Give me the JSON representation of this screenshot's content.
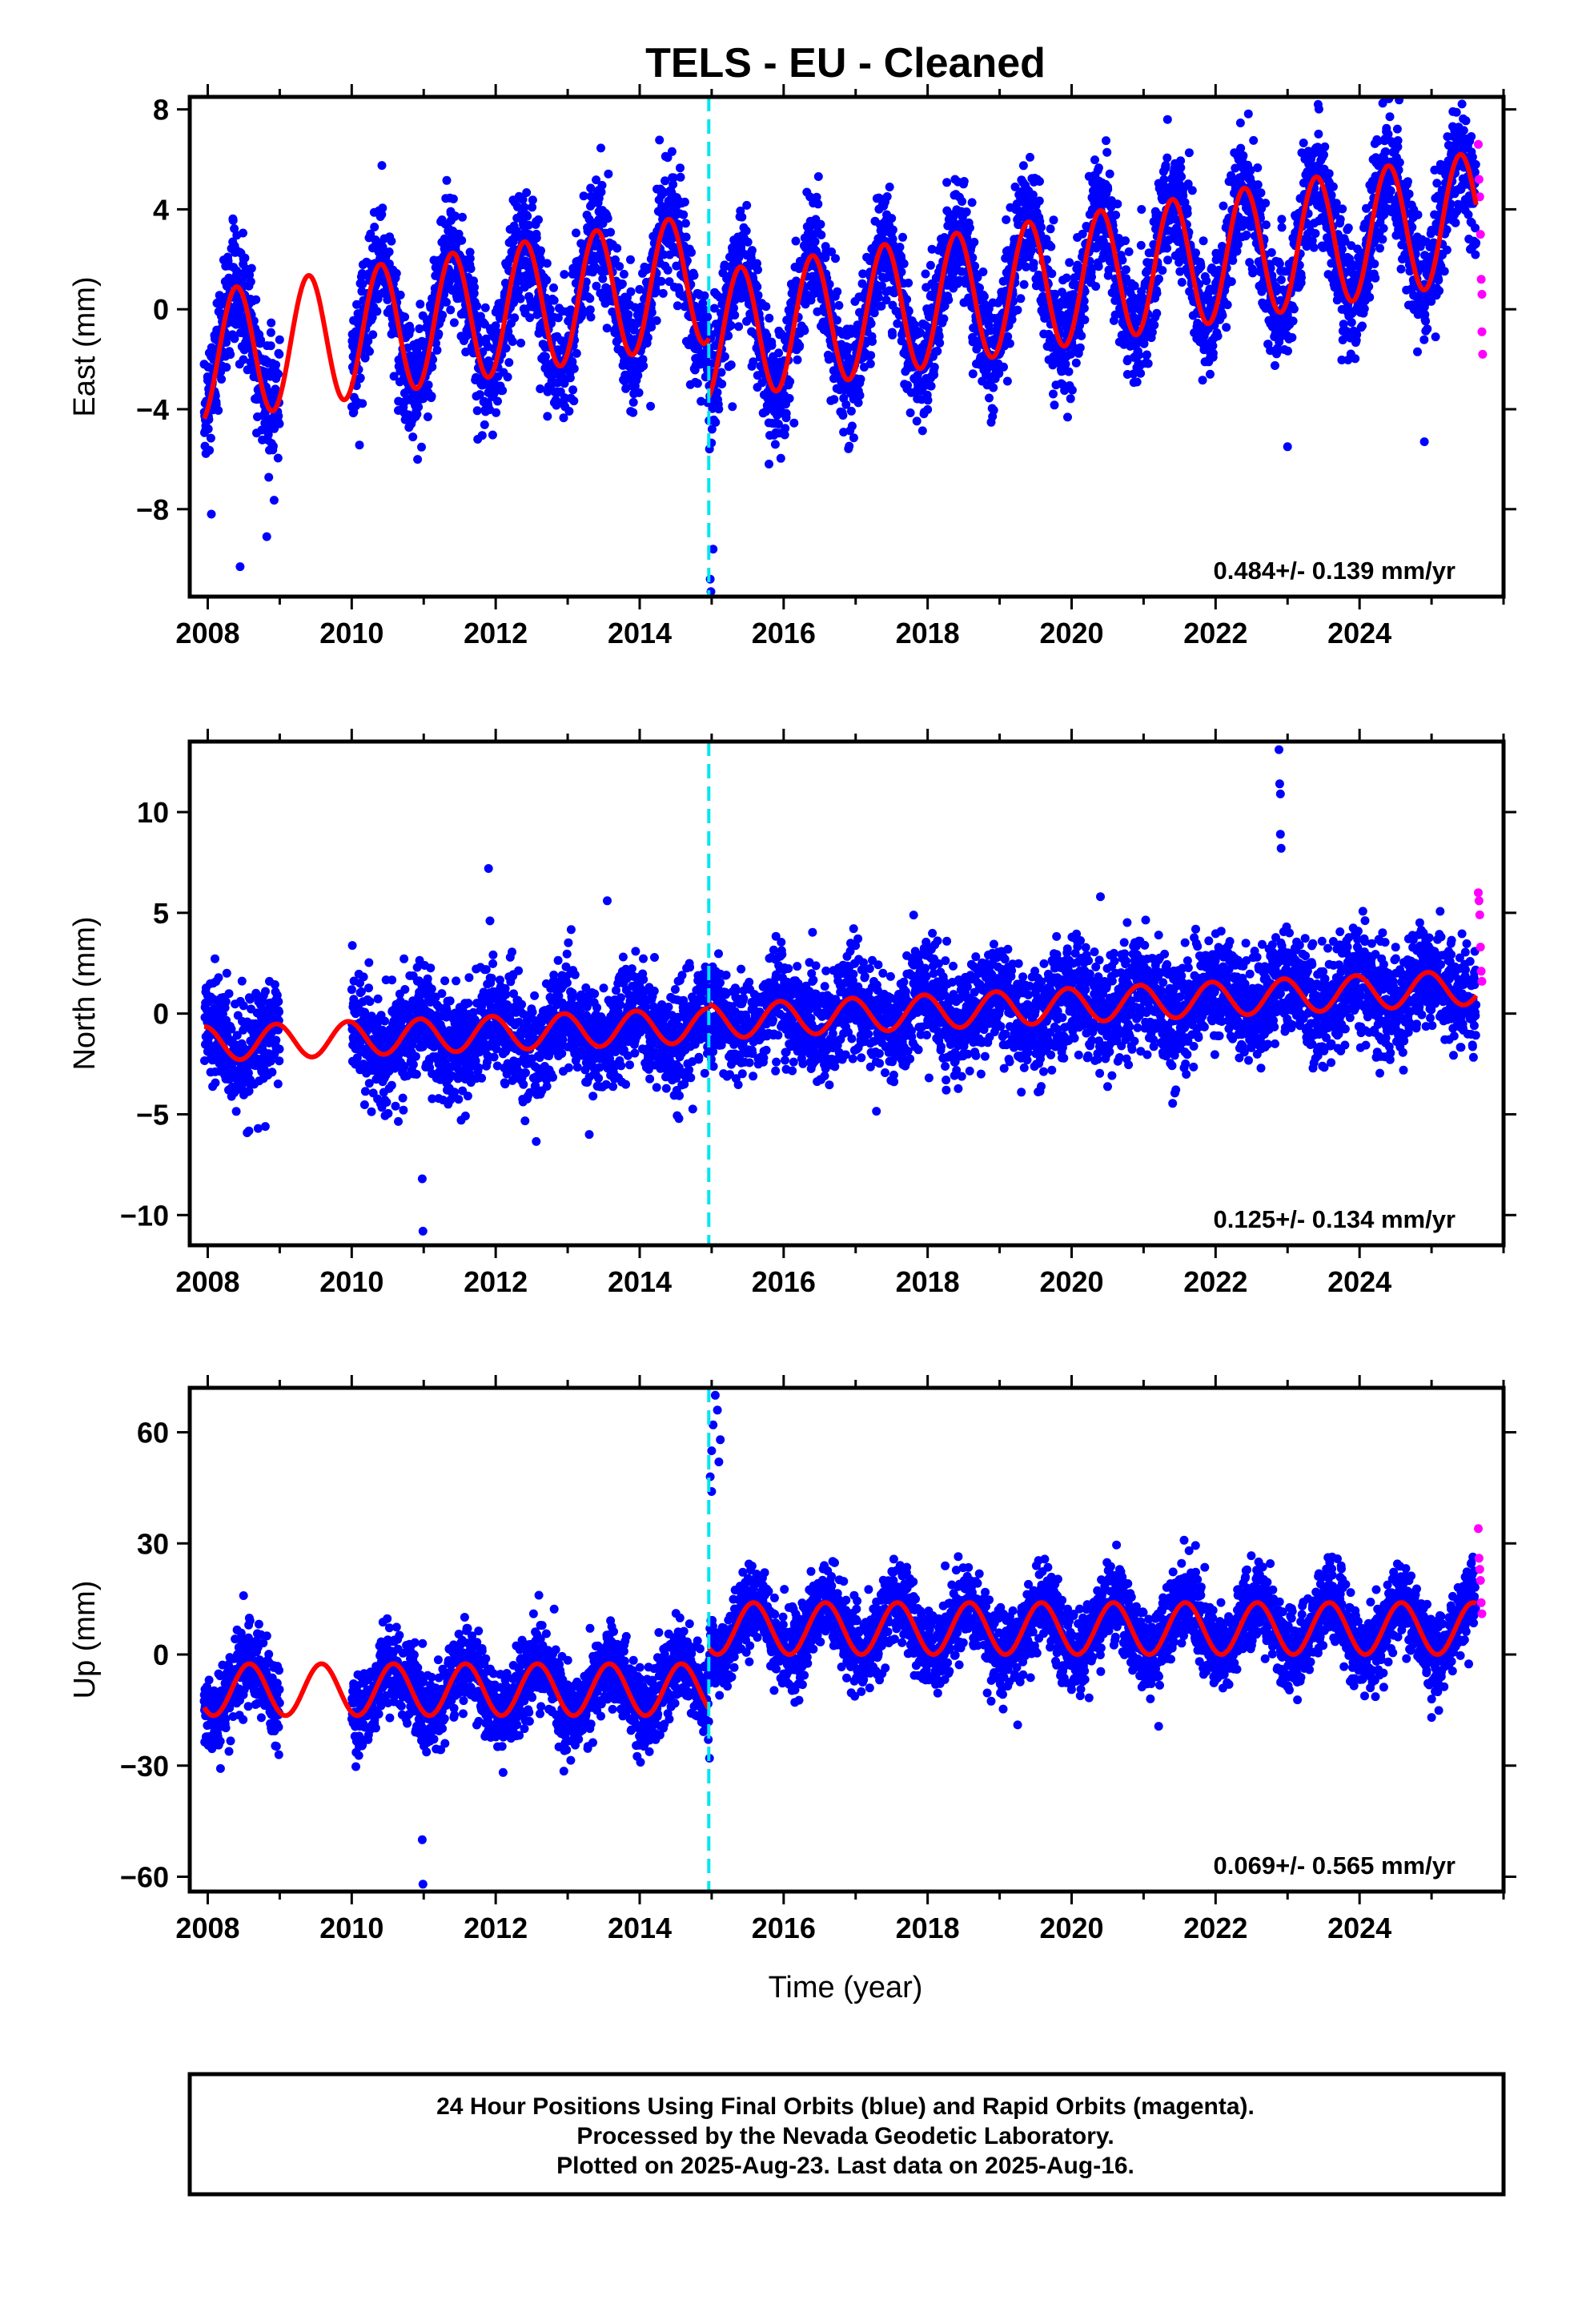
{
  "colors": {
    "final_orbits": "#0000ff",
    "rapid_orbits": "#ff00ff",
    "model": "#ff0000",
    "offset": "#00e5ee",
    "frame": "#000000"
  },
  "chart_data": [
    {
      "type": "scatter",
      "title": "TELS  - EU - Cleaned",
      "ylabel": "East (mm)",
      "xlabel": "",
      "xlim": [
        2007.75,
        2026.0
      ],
      "ylim": [
        -11.5,
        8.5
      ],
      "yticks": [
        8,
        4,
        0,
        -4,
        -8
      ],
      "ytick_labels": [
        "8",
        "4",
        "0",
        "−4",
        "−8"
      ],
      "xticks": [
        2008,
        2010,
        2012,
        2014,
        2016,
        2018,
        2020,
        2022,
        2024
      ],
      "rate_text": "0.484+/- 0.139 mm/yr",
      "offset_epoch": 2014.96,
      "gaps": [
        [
          2009.0,
          2010.0
        ]
      ],
      "seasonal_model": {
        "segments": [
          {
            "t0": 2007.95,
            "t1": 2014.96,
            "base_at_start": -1.9,
            "trend": 0.45,
            "amplitude": 2.6,
            "peak_phase": 0.4
          },
          {
            "t0": 2014.96,
            "t1": 2025.62,
            "base_at_start": -1.1,
            "trend": 0.45,
            "amplitude": 2.6,
            "peak_phase": 0.4
          }
        ]
      },
      "scatter_noise_mm": 1.2,
      "outliers": [
        {
          "x": 2008.45,
          "y": -10.3
        },
        {
          "x": 2008.82,
          "y": -9.1
        },
        {
          "x": 2014.98,
          "y": -10.8
        },
        {
          "x": 2015.02,
          "y": -9.6
        },
        {
          "x": 2014.99,
          "y": -11.3
        },
        {
          "x": 2023.0,
          "y": -5.5
        },
        {
          "x": 2024.9,
          "y": -5.3
        },
        {
          "x": 2008.05,
          "y": -8.2
        }
      ],
      "rapid_points": [
        {
          "x": 2025.65,
          "y": 6.6
        },
        {
          "x": 2025.66,
          "y": 5.2
        },
        {
          "x": 2025.67,
          "y": 4.5
        },
        {
          "x": 2025.68,
          "y": 3.0
        },
        {
          "x": 2025.69,
          "y": 1.2
        },
        {
          "x": 2025.7,
          "y": 0.6
        },
        {
          "x": 2025.7,
          "y": -0.9
        },
        {
          "x": 2025.71,
          "y": -1.8
        }
      ]
    },
    {
      "type": "scatter",
      "ylabel": "North (mm)",
      "xlabel": "",
      "xlim": [
        2007.75,
        2026.0
      ],
      "ylim": [
        -11.5,
        13.5
      ],
      "yticks": [
        10,
        5,
        0,
        -5,
        -10
      ],
      "ytick_labels": [
        "10",
        "5",
        "0",
        "−5",
        "−10"
      ],
      "xticks": [
        2008,
        2010,
        2012,
        2014,
        2016,
        2018,
        2020,
        2022,
        2024
      ],
      "rate_text": "0.125+/- 0.134 mm/yr",
      "offset_epoch": 2014.96,
      "gaps": [
        [
          2009.0,
          2010.0
        ]
      ],
      "seasonal_model": {
        "segments": [
          {
            "t0": 2007.95,
            "t1": 2014.96,
            "base_at_start": -1.5,
            "trend": 0.13,
            "amplitude": 0.85,
            "peak_phase": 0.95
          },
          {
            "t0": 2014.96,
            "t1": 2025.62,
            "base_at_start": -0.4,
            "trend": 0.16,
            "amplitude": 0.85,
            "peak_phase": 0.95
          }
        ]
      },
      "scatter_noise_mm": 1.3,
      "outliers": [
        {
          "x": 2010.98,
          "y": -8.2
        },
        {
          "x": 2010.99,
          "y": -10.8
        },
        {
          "x": 2011.9,
          "y": 7.2
        },
        {
          "x": 2011.92,
          "y": 4.6
        },
        {
          "x": 2013.55,
          "y": 5.6
        },
        {
          "x": 2013.3,
          "y": -6.0
        },
        {
          "x": 2020.4,
          "y": 5.8
        },
        {
          "x": 2022.88,
          "y": 13.1
        },
        {
          "x": 2022.89,
          "y": 11.4
        },
        {
          "x": 2022.9,
          "y": 10.9
        },
        {
          "x": 2022.9,
          "y": 8.9
        },
        {
          "x": 2022.91,
          "y": 8.2
        },
        {
          "x": 2008.7,
          "y": -5.7
        },
        {
          "x": 2008.8,
          "y": -5.6
        }
      ],
      "rapid_points": [
        {
          "x": 2025.65,
          "y": 6.0
        },
        {
          "x": 2025.66,
          "y": 5.6
        },
        {
          "x": 2025.67,
          "y": 4.9
        },
        {
          "x": 2025.68,
          "y": 3.3
        },
        {
          "x": 2025.69,
          "y": 2.1
        },
        {
          "x": 2025.7,
          "y": 1.6
        }
      ]
    },
    {
      "type": "scatter",
      "ylabel": "Up (mm)",
      "xlabel": "Time (year)",
      "xlim": [
        2007.75,
        2026.0
      ],
      "ylim": [
        -64,
        72
      ],
      "yticks": [
        60,
        30,
        0,
        -30,
        -60
      ],
      "ytick_labels": [
        "60",
        "30",
        "0",
        "−30",
        "−60"
      ],
      "xticks": [
        2008,
        2010,
        2012,
        2014,
        2016,
        2018,
        2020,
        2022,
        2024
      ],
      "rate_text": "0.069+/- 0.565 mm/yr",
      "offset_epoch": 2014.96,
      "gaps": [
        [
          2009.0,
          2010.0
        ]
      ],
      "seasonal_model": {
        "segments": [
          {
            "t0": 2007.95,
            "t1": 2014.96,
            "base_at_start": -9.5,
            "trend": 0.0,
            "amplitude": 7.0,
            "peak_phase": 0.58
          },
          {
            "t0": 2014.96,
            "t1": 2025.62,
            "base_at_start": 7.0,
            "trend": 0.0,
            "amplitude": 7.0,
            "peak_phase": 0.58
          }
        ]
      },
      "scatter_noise_mm": 5.5,
      "outliers": [
        {
          "x": 2010.98,
          "y": -50.0
        },
        {
          "x": 2010.99,
          "y": -62.0
        },
        {
          "x": 2014.98,
          "y": 48.0
        },
        {
          "x": 2015.0,
          "y": 55.0
        },
        {
          "x": 2015.02,
          "y": 62.0
        },
        {
          "x": 2015.05,
          "y": 70.0
        },
        {
          "x": 2015.08,
          "y": 66.0
        },
        {
          "x": 2015.1,
          "y": 52.0
        },
        {
          "x": 2015.12,
          "y": 58.0
        },
        {
          "x": 2015.0,
          "y": 44.0
        },
        {
          "x": 2014.97,
          "y": -28.0
        },
        {
          "x": 2019.25,
          "y": -19.0
        },
        {
          "x": 2012.6,
          "y": 16.0
        },
        {
          "x": 2025.0,
          "y": -17.0
        }
      ],
      "rapid_points": [
        {
          "x": 2025.65,
          "y": 34.0
        },
        {
          "x": 2025.66,
          "y": 26.0
        },
        {
          "x": 2025.67,
          "y": 23.0
        },
        {
          "x": 2025.68,
          "y": 20.0
        },
        {
          "x": 2025.69,
          "y": 14.0
        },
        {
          "x": 2025.7,
          "y": 11.0
        }
      ]
    }
  ],
  "footer": {
    "line1": "24 Hour Positions Using Final Orbits (blue) and Rapid Orbits (magenta).",
    "line2": "Processed by the Nevada Geodetic Laboratory.",
    "line3": "Plotted on 2025-Aug-23. Last data on 2025-Aug-16."
  }
}
